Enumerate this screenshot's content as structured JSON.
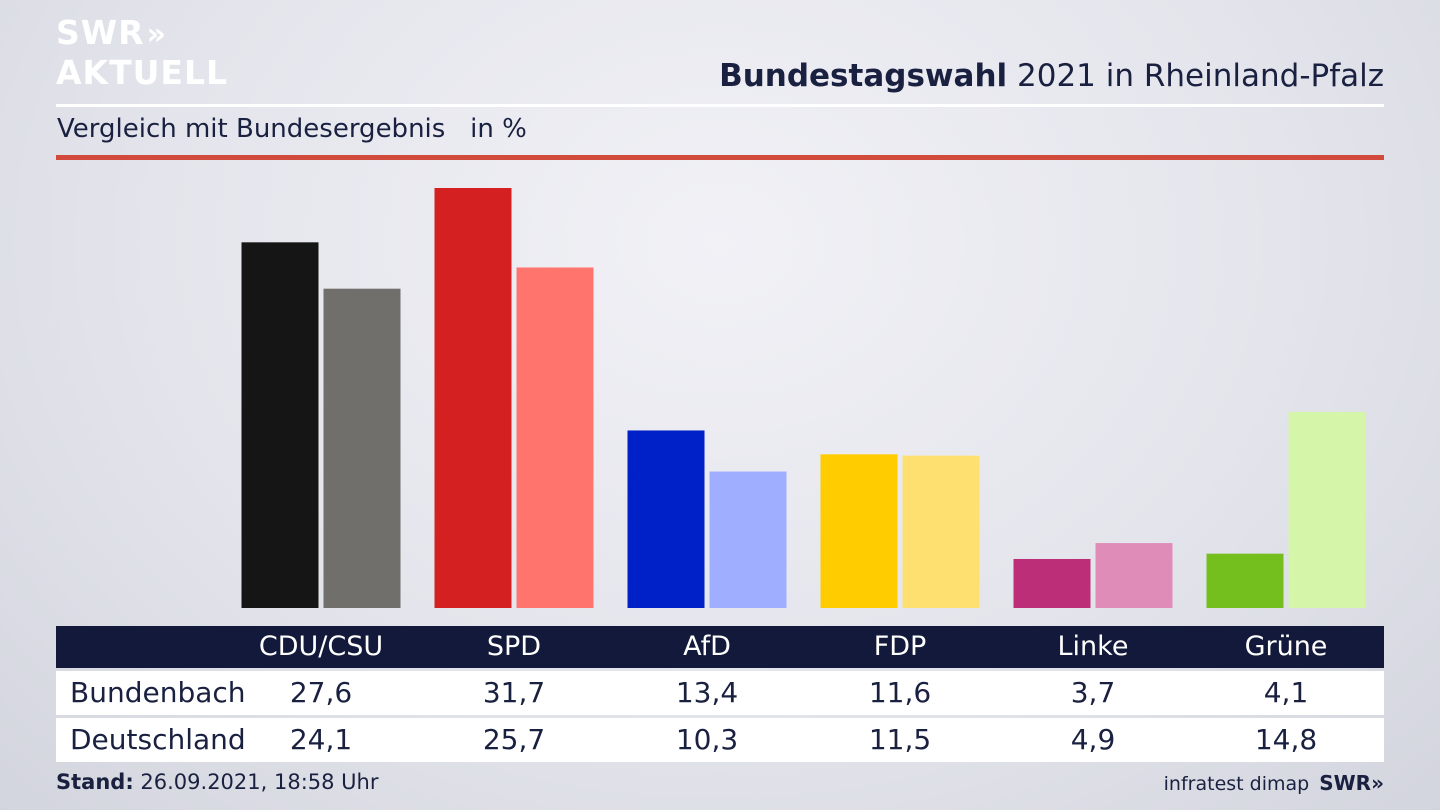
{
  "brand": {
    "line1": "SWR",
    "chevrons": "»",
    "line2": "AKTUELL"
  },
  "header": {
    "title_bold": "Bundestagswahl",
    "title_rest": " 2021 in Rheinland-Pfalz",
    "subtitle": "Vergleich mit Bundesergebnis   in %"
  },
  "chart_data": {
    "type": "bar",
    "title": "Bundestagswahl 2021 in Rheinland-Pfalz",
    "subtitle": "Vergleich mit Bundesergebnis in %",
    "categories": [
      "CDU/CSU",
      "SPD",
      "AfD",
      "FDP",
      "Linke",
      "Grüne"
    ],
    "series": [
      {
        "name": "Bundenbach",
        "values": [
          27.6,
          31.7,
          13.4,
          11.6,
          3.7,
          4.1
        ],
        "colors": [
          "#151515",
          "#d42020",
          "#0020c8",
          "#ffcc00",
          "#bc2f78",
          "#74be1e"
        ]
      },
      {
        "name": "Deutschland",
        "values": [
          24.1,
          25.7,
          10.3,
          11.5,
          4.9,
          14.8
        ],
        "colors": [
          "#706f6c",
          "#ff756d",
          "#a0aeff",
          "#fde070",
          "#e08cb8",
          "#d5f5a8"
        ]
      }
    ],
    "ylim": [
      0,
      31.7
    ],
    "grid": false,
    "legend": "table-below"
  },
  "table": {
    "headers": [
      "CDU/CSU",
      "SPD",
      "AfD",
      "FDP",
      "Linke",
      "Grüne"
    ],
    "rows": [
      {
        "label": "Bundenbach",
        "values": [
          "27,6",
          "31,7",
          "13,4",
          "11,6",
          "3,7",
          "4,1"
        ]
      },
      {
        "label": "Deutschland",
        "values": [
          "24,1",
          "25,7",
          "10,3",
          "11,5",
          "4,9",
          "14,8"
        ]
      }
    ]
  },
  "footer": {
    "stand_label": "Stand:",
    "stand_value": " 26.09.2021, 18:58 Uhr",
    "source": "infratest dimap",
    "brand": "SWR»"
  }
}
